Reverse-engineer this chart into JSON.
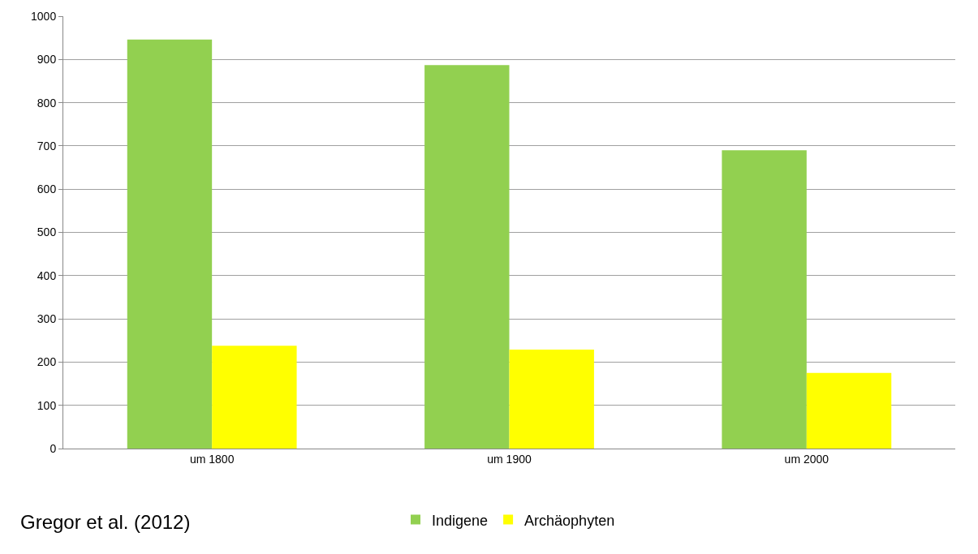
{
  "chart_data": {
    "type": "bar",
    "categories": [
      "um 1800",
      "um 1900",
      "um 2000"
    ],
    "series": [
      {
        "name": "Indigene",
        "color": "#92d050",
        "values": [
          946,
          887,
          690
        ]
      },
      {
        "name": "Archäophyten",
        "color": "#ffff00",
        "values": [
          238,
          229,
          175
        ]
      }
    ],
    "ylim": [
      0,
      1000
    ],
    "yticks": [
      0,
      100,
      200,
      300,
      400,
      500,
      600,
      700,
      800,
      900,
      1000
    ],
    "grid": "y",
    "legend": "bottom",
    "annotations": [
      "Gregor et al. (2012)"
    ]
  }
}
